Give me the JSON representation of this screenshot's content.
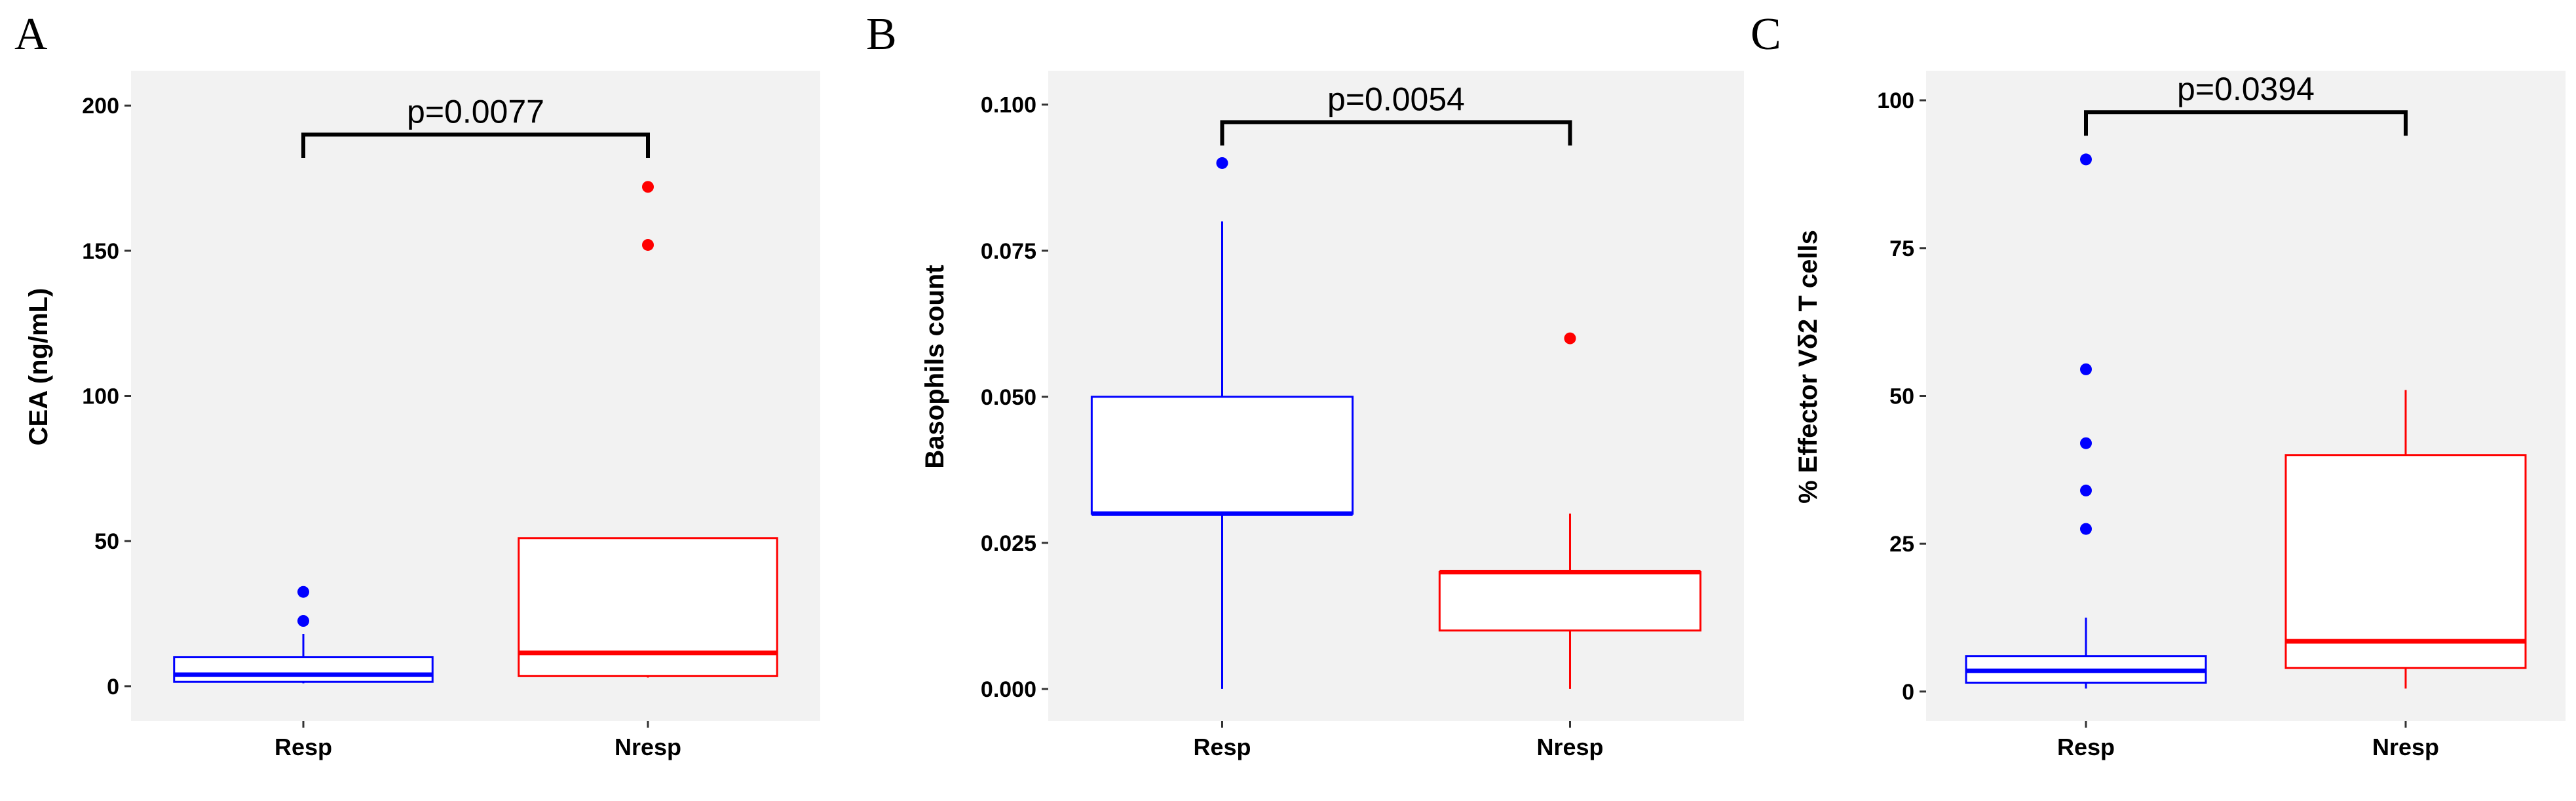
{
  "colors": {
    "resp": "#0000ff",
    "nresp": "#ff0000",
    "panel_bg": "#f2f2f2",
    "bracket": "#000000"
  },
  "chart_data": [
    {
      "type": "boxplot",
      "panel_label": "A",
      "title": "",
      "xlabel": "",
      "ylabel": "CEA (ng/mL)",
      "categories": [
        "Resp",
        "Nresp"
      ],
      "ylim": [
        -12,
        212
      ],
      "yticks": [
        0,
        50,
        100,
        150,
        200
      ],
      "ytick_labels": [
        "0",
        "50",
        "100",
        "150",
        "200"
      ],
      "grid": false,
      "boxes": [
        {
          "group": "Resp",
          "min": 1,
          "q1": 1.5,
          "median": 4,
          "q3": 10,
          "max": 18,
          "outliers": [
            22.5,
            32.5
          ]
        },
        {
          "group": "Nresp",
          "min": 3,
          "q1": 3.5,
          "median": 11.5,
          "q3": 51,
          "max": 51,
          "outliers": [
            152,
            172
          ]
        }
      ],
      "significance": {
        "label": "p=0.0077",
        "from": "Resp",
        "to": "Nresp",
        "y": 190,
        "tick_bottom": 182
      }
    },
    {
      "type": "boxplot",
      "panel_label": "B",
      "title": "",
      "xlabel": "",
      "ylabel": "Basophils count",
      "categories": [
        "Resp",
        "Nresp"
      ],
      "ylim": [
        -0.0055,
        0.1058
      ],
      "yticks": [
        0,
        0.025,
        0.05,
        0.075,
        0.1
      ],
      "ytick_labels": [
        "0.000",
        "0.025",
        "0.050",
        "0.075",
        "0.100"
      ],
      "grid": false,
      "boxes": [
        {
          "group": "Resp",
          "min": 0,
          "q1": 0.03,
          "median": 0.03,
          "q3": 0.05,
          "max": 0.08,
          "outliers": [
            0.09
          ]
        },
        {
          "group": "Nresp",
          "min": 0,
          "q1": 0.01,
          "median": 0.02,
          "q3": 0.02,
          "max": 0.03,
          "outliers": [
            0.06
          ]
        }
      ],
      "significance": {
        "label": "p=0.0054",
        "from": "Resp",
        "to": "Nresp",
        "y": 0.097,
        "tick_bottom": 0.093
      }
    },
    {
      "type": "boxplot",
      "panel_label": "C",
      "title": "",
      "xlabel": "",
      "ylabel": "% Effector Vδ2 T cells",
      "categories": [
        "Resp",
        "Nresp"
      ],
      "ylim": [
        -5,
        105
      ],
      "yticks": [
        0,
        25,
        50,
        75,
        100
      ],
      "ytick_labels": [
        "0",
        "25",
        "50",
        "75",
        "100"
      ],
      "grid": false,
      "boxes": [
        {
          "group": "Resp",
          "min": 0.5,
          "q1": 1.5,
          "median": 3.5,
          "q3": 6,
          "max": 12.5,
          "outliers": [
            27.5,
            34,
            42,
            54.5,
            90
          ]
        },
        {
          "group": "Nresp",
          "min": 0.5,
          "q1": 4,
          "median": 8.5,
          "q3": 40,
          "max": 51,
          "outliers": []
        }
      ],
      "significance": {
        "label": "p=0.0394",
        "from": "Resp",
        "to": "Nresp",
        "y": 98,
        "tick_bottom": 94
      }
    }
  ]
}
